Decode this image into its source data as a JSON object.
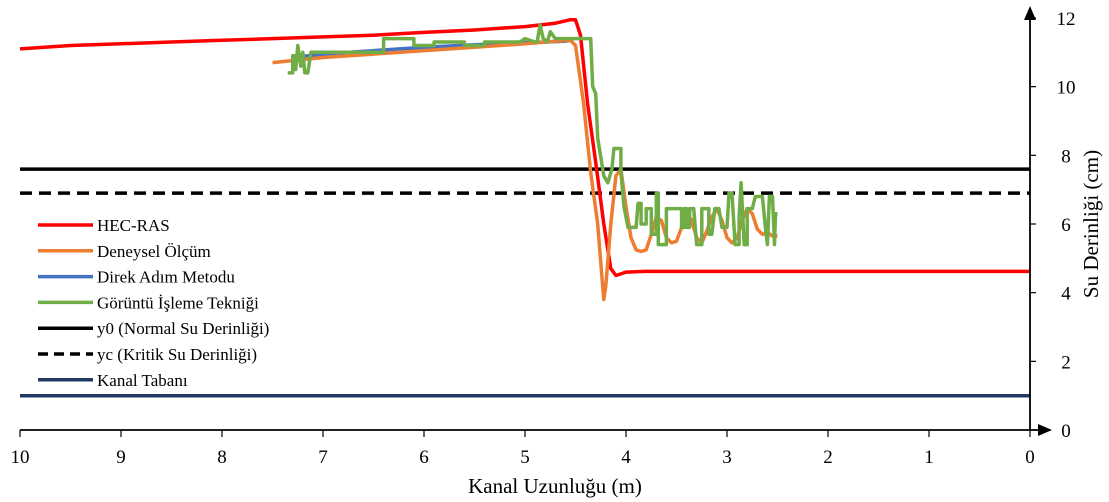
{
  "chart_data": {
    "type": "line",
    "title": "",
    "xlabel": "Kanal Uzunluğu (m)",
    "ylabel": "Su Derinliği (cm)",
    "xlim": [
      10,
      0
    ],
    "ylim": [
      0,
      12
    ],
    "x_reversed": true,
    "y_axis_side": "right",
    "grid": false,
    "legend_placement": "left",
    "xticks": [
      "10",
      "9",
      "8",
      "7",
      "6",
      "5",
      "4",
      "3",
      "2",
      "1",
      "0"
    ],
    "yticks": [
      "0",
      "2",
      "4",
      "6",
      "8",
      "10",
      "12"
    ],
    "series": [
      {
        "name": "HEC-RAS",
        "color": "#ff0000",
        "dash": "solid",
        "points": [
          [
            10,
            11.1
          ],
          [
            9.5,
            11.2
          ],
          [
            9,
            11.25
          ],
          [
            8.5,
            11.3
          ],
          [
            8,
            11.35
          ],
          [
            7.5,
            11.4
          ],
          [
            7,
            11.45
          ],
          [
            6.5,
            11.5
          ],
          [
            6,
            11.58
          ],
          [
            5.5,
            11.65
          ],
          [
            5,
            11.75
          ],
          [
            4.7,
            11.85
          ],
          [
            4.55,
            11.95
          ],
          [
            4.5,
            11.95
          ],
          [
            4.45,
            11.5
          ],
          [
            4.38,
            9.5
          ],
          [
            4.3,
            7.8
          ],
          [
            4.22,
            6.0
          ],
          [
            4.15,
            4.7
          ],
          [
            4.1,
            4.5
          ],
          [
            4.0,
            4.6
          ],
          [
            3.8,
            4.62
          ],
          [
            3.5,
            4.62
          ],
          [
            3,
            4.62
          ],
          [
            2,
            4.62
          ],
          [
            1,
            4.62
          ],
          [
            0,
            4.62
          ]
        ]
      },
      {
        "name": "Deneysel Ölçüm",
        "color": "#ed7d31",
        "dash": "solid",
        "points": [
          [
            7.5,
            10.7
          ],
          [
            7,
            10.85
          ],
          [
            6.5,
            10.95
          ],
          [
            6,
            11.05
          ],
          [
            5.5,
            11.15
          ],
          [
            5,
            11.25
          ],
          [
            4.7,
            11.32
          ],
          [
            4.55,
            11.35
          ],
          [
            4.5,
            11.2
          ],
          [
            4.42,
            9.5
          ],
          [
            4.35,
            7.5
          ],
          [
            4.28,
            6.0
          ],
          [
            4.24,
            4.5
          ],
          [
            4.22,
            3.8
          ],
          [
            4.2,
            4.2
          ],
          [
            4.15,
            6.0
          ],
          [
            4.1,
            7.4
          ],
          [
            4.05,
            7.6
          ],
          [
            4.0,
            6.5
          ],
          [
            3.95,
            5.6
          ],
          [
            3.9,
            5.25
          ],
          [
            3.85,
            5.2
          ],
          [
            3.8,
            5.25
          ],
          [
            3.75,
            5.7
          ],
          [
            3.7,
            6.2
          ],
          [
            3.65,
            6.1
          ],
          [
            3.6,
            5.6
          ],
          [
            3.55,
            5.45
          ],
          [
            3.5,
            5.5
          ],
          [
            3.45,
            5.9
          ],
          [
            3.4,
            6.35
          ],
          [
            3.35,
            6.1
          ],
          [
            3.3,
            5.6
          ],
          [
            3.25,
            5.45
          ],
          [
            3.2,
            5.8
          ],
          [
            3.15,
            6.2
          ],
          [
            3.1,
            6.45
          ],
          [
            3.05,
            6.1
          ],
          [
            3.0,
            5.6
          ],
          [
            2.95,
            5.45
          ],
          [
            2.9,
            5.6
          ],
          [
            2.85,
            6.1
          ],
          [
            2.8,
            6.45
          ],
          [
            2.75,
            6.3
          ],
          [
            2.7,
            5.85
          ],
          [
            2.65,
            5.7
          ],
          [
            2.6,
            5.75
          ],
          [
            2.55,
            5.65
          ],
          [
            2.5,
            5.65
          ]
        ]
      },
      {
        "name": "Direk Adım Metodu",
        "color": "#4472c4",
        "dash": "solid",
        "points": [
          [
            7.3,
            10.85
          ],
          [
            7,
            10.95
          ],
          [
            6.5,
            11.05
          ],
          [
            6,
            11.15
          ],
          [
            5.5,
            11.22
          ],
          [
            5,
            11.28
          ],
          [
            4.6,
            11.32
          ],
          [
            4.55,
            11.35
          ]
        ]
      },
      {
        "name": "Görüntü İşleme Tekniği",
        "color": "#70ad47",
        "dash": "solid",
        "points": [
          [
            7.35,
            10.4
          ],
          [
            7.3,
            10.4
          ],
          [
            7.3,
            10.9
          ],
          [
            7.27,
            10.9
          ],
          [
            7.27,
            10.5
          ],
          [
            7.25,
            11.2
          ],
          [
            7.22,
            10.6
          ],
          [
            7.2,
            11.0
          ],
          [
            7.18,
            10.4
          ],
          [
            7.15,
            10.4
          ],
          [
            7.12,
            11.0
          ],
          [
            7.05,
            11.0
          ],
          [
            7.0,
            11.0
          ],
          [
            6.8,
            11.0
          ],
          [
            6.5,
            11.0
          ],
          [
            6.4,
            11.0
          ],
          [
            6.4,
            11.4
          ],
          [
            6.2,
            11.4
          ],
          [
            6.1,
            11.4
          ],
          [
            6.1,
            11.2
          ],
          [
            5.9,
            11.2
          ],
          [
            5.9,
            11.3
          ],
          [
            5.6,
            11.3
          ],
          [
            5.6,
            11.2
          ],
          [
            5.4,
            11.2
          ],
          [
            5.4,
            11.3
          ],
          [
            5.05,
            11.3
          ],
          [
            5.0,
            11.4
          ],
          [
            4.9,
            11.3
          ],
          [
            4.88,
            11.3
          ],
          [
            4.85,
            11.8
          ],
          [
            4.82,
            11.4
          ],
          [
            4.78,
            11.3
          ],
          [
            4.75,
            11.6
          ],
          [
            4.7,
            11.4
          ],
          [
            4.65,
            11.4
          ],
          [
            4.5,
            11.4
          ],
          [
            4.35,
            11.4
          ],
          [
            4.33,
            10.0
          ],
          [
            4.3,
            9.8
          ],
          [
            4.28,
            8.5
          ],
          [
            4.22,
            7.4
          ],
          [
            4.18,
            7.2
          ],
          [
            4.14,
            7.6
          ],
          [
            4.12,
            8.2
          ],
          [
            4.05,
            8.2
          ],
          [
            4.05,
            7.5
          ],
          [
            4.02,
            6.5
          ],
          [
            3.98,
            5.9
          ],
          [
            3.9,
            5.9
          ],
          [
            3.88,
            6.6
          ],
          [
            3.85,
            6.6
          ],
          [
            3.85,
            6.0
          ],
          [
            3.8,
            6.0
          ],
          [
            3.8,
            6.45
          ],
          [
            3.75,
            6.45
          ],
          [
            3.75,
            5.7
          ],
          [
            3.7,
            5.7
          ],
          [
            3.7,
            6.9
          ],
          [
            3.68,
            6.9
          ],
          [
            3.68,
            5.4
          ],
          [
            3.6,
            5.4
          ],
          [
            3.6,
            6.45
          ],
          [
            3.45,
            6.45
          ],
          [
            3.45,
            5.9
          ],
          [
            3.42,
            5.9
          ],
          [
            3.42,
            6.45
          ],
          [
            3.4,
            6.45
          ],
          [
            3.4,
            5.9
          ],
          [
            3.37,
            5.9
          ],
          [
            3.37,
            6.45
          ],
          [
            3.33,
            6.45
          ],
          [
            3.3,
            5.4
          ],
          [
            3.25,
            5.4
          ],
          [
            3.25,
            6.45
          ],
          [
            3.18,
            6.45
          ],
          [
            3.18,
            5.7
          ],
          [
            3.15,
            5.7
          ],
          [
            3.12,
            6.45
          ],
          [
            3.08,
            6.45
          ],
          [
            3.05,
            5.9
          ],
          [
            3.0,
            5.9
          ],
          [
            2.98,
            6.9
          ],
          [
            2.95,
            6.9
          ],
          [
            2.92,
            5.4
          ],
          [
            2.88,
            5.4
          ],
          [
            2.88,
            6.2
          ],
          [
            2.86,
            7.2
          ],
          [
            2.83,
            5.4
          ],
          [
            2.8,
            5.4
          ],
          [
            2.8,
            6.45
          ],
          [
            2.75,
            6.45
          ],
          [
            2.72,
            6.8
          ],
          [
            2.65,
            6.8
          ],
          [
            2.62,
            5.9
          ],
          [
            2.6,
            5.4
          ],
          [
            2.58,
            6.8
          ],
          [
            2.55,
            6.8
          ],
          [
            2.53,
            5.4
          ],
          [
            2.52,
            6.3
          ],
          [
            2.5,
            6.3
          ]
        ]
      },
      {
        "name": "y0 (Normal Su Derinliği)",
        "color": "#000000",
        "dash": "solid",
        "points": [
          [
            10,
            7.6
          ],
          [
            0,
            7.6
          ]
        ]
      },
      {
        "name": "yc (Kritik Su Derinliği)",
        "color": "#000000",
        "dash": "dashed",
        "points": [
          [
            10,
            6.9
          ],
          [
            0,
            6.9
          ]
        ]
      },
      {
        "name": "Kanal Tabanı",
        "color": "#1f3864",
        "dash": "solid",
        "points": [
          [
            10,
            1.0
          ],
          [
            0,
            1.0
          ]
        ]
      }
    ]
  }
}
